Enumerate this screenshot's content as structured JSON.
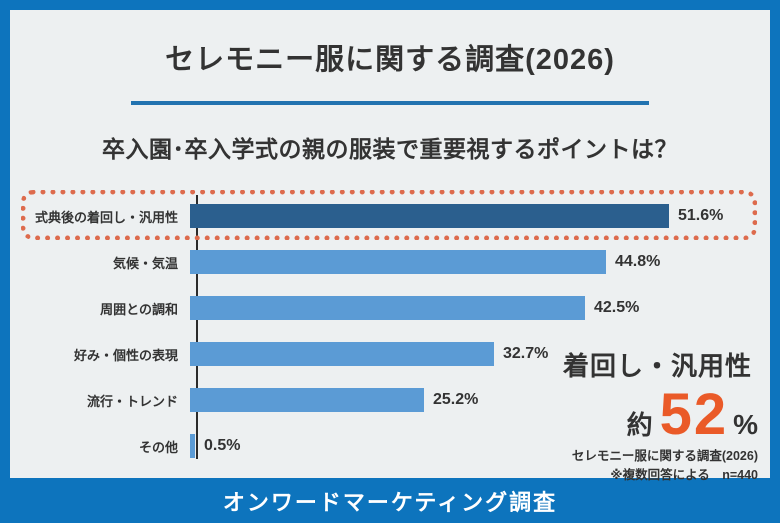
{
  "colors": {
    "frame_blue": "#0d74bd",
    "card_bg": "#edf0f1",
    "underline_blue": "#2273b0",
    "bar_blue": "#5b9bd5",
    "highlight_bar_blue": "#2b5f8e",
    "highlight_dot_orange": "#dd6b4d",
    "big_number_orange": "#ea5a28",
    "text_dark": "#333333"
  },
  "header": {
    "title": "セレモニー服に関する調査(2026)"
  },
  "question": {
    "text": "卒入園･卒入学式の親の服装で重要視するポイントは？"
  },
  "chart_data": {
    "type": "bar",
    "orientation": "horizontal",
    "categories": [
      "式典後の着回し・汎用性",
      "気候・気温",
      "周囲との調和",
      "好み・個性の表現",
      "流行・トレンド",
      "その他"
    ],
    "values": [
      51.6,
      44.8,
      42.5,
      32.7,
      25.2,
      0.5
    ],
    "value_labels": [
      "51.6%",
      "44.8%",
      "42.5%",
      "32.7%",
      "25.2%",
      "0.5%"
    ],
    "highlight_index": 0,
    "xlim": [
      0,
      60
    ],
    "grid": false,
    "legend": false,
    "bar_color": "#5b9bd5",
    "highlight_bar_color": "#2b5f8e"
  },
  "callout": {
    "title": "着回し・汎用性",
    "approx": "約",
    "big_number": "52",
    "unit": "%",
    "source_line1": "セレモニー服に関する調査(2026)",
    "source_line2": "※複数回答による　n=440"
  },
  "footer": {
    "label": "オンワードマーケティング調査"
  }
}
